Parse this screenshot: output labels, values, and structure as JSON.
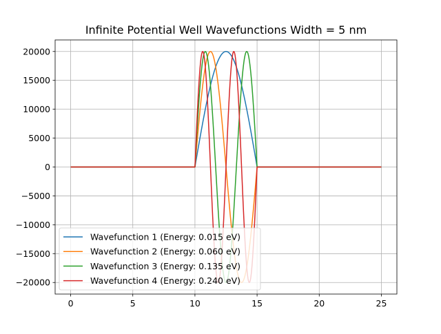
{
  "chart_data": {
    "type": "line",
    "title": "Infinite Potential Well Wavefunctions Width = 5 nm",
    "xlabel": "",
    "ylabel": "",
    "xlim": [
      -1.25,
      26.25
    ],
    "ylim": [
      -22000,
      22000
    ],
    "xticks": [
      0,
      5,
      10,
      15,
      20,
      25
    ],
    "xtick_labels": [
      "0",
      "5",
      "10",
      "15",
      "20",
      "25"
    ],
    "yticks": [
      -20000,
      -15000,
      -10000,
      -5000,
      0,
      5000,
      10000,
      15000,
      20000
    ],
    "ytick_labels": [
      "−20000",
      "−15000",
      "−10000",
      "−5000",
      "0",
      "5000",
      "10000",
      "15000",
      "20000"
    ],
    "grid": true,
    "legend_position": "lower-left",
    "well": {
      "x_start": 10,
      "x_end": 15,
      "domain": [
        0,
        25
      ],
      "amplitude": 20000
    },
    "series": [
      {
        "name": "Wavefunction 1 (Energy: 0.015 eV)",
        "n": 1,
        "color": "#1f77b4"
      },
      {
        "name": "Wavefunction 2 (Energy: 0.060 eV)",
        "n": 2,
        "color": "#ff7f0e"
      },
      {
        "name": "Wavefunction 3 (Energy: 0.135 eV)",
        "n": 3,
        "color": "#2ca02c"
      },
      {
        "name": "Wavefunction 4 (Energy: 0.240 eV)",
        "n": 4,
        "color": "#d62728"
      }
    ]
  }
}
